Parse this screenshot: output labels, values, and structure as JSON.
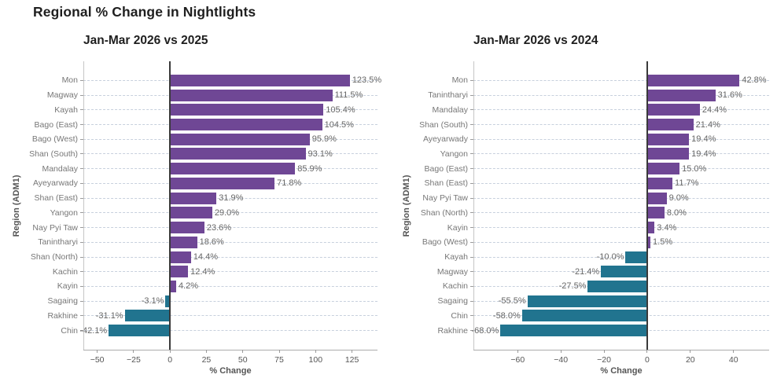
{
  "title": "Regional % Change in Nightlights",
  "colors": {
    "positive_bar": "#6f4795",
    "negative_bar": "#21748f",
    "gridline": "#c7d0dd",
    "zero_line": "#3a3a3a",
    "title_text": "#1f1f1f",
    "axis_text": "#555555",
    "category_text": "#777777",
    "value_text": "#666666"
  },
  "chart_data": [
    {
      "type": "bar",
      "orientation": "horizontal",
      "title": "Jan-Mar 2026 vs 2025",
      "xlabel": "% Change",
      "ylabel": "Region (ADM1)",
      "xlim": [
        -59.5,
        142.5
      ],
      "xticks": [
        -50,
        -25,
        0,
        25,
        50,
        75,
        100,
        125
      ],
      "grid": "dashed-horizontal-per-category",
      "legend": "none",
      "categories": [
        "Mon",
        "Magway",
        "Kayah",
        "Bago (East)",
        "Bago (West)",
        "Shan (South)",
        "Mandalay",
        "Ayeyarwady",
        "Shan (East)",
        "Yangon",
        "Nay Pyi Taw",
        "Tanintharyi",
        "Shan (North)",
        "Kachin",
        "Kayin",
        "Sagaing",
        "Rakhine",
        "Chin"
      ],
      "values": [
        123.5,
        111.5,
        105.4,
        104.5,
        95.9,
        93.1,
        85.9,
        71.8,
        31.9,
        29.0,
        23.6,
        18.6,
        14.4,
        12.4,
        4.2,
        -3.1,
        -31.1,
        -42.1
      ],
      "bar_labels": [
        "123.5%",
        "111.5%",
        "105.4%",
        "104.5%",
        "95.9%",
        "93.1%",
        "85.9%",
        "71.8%",
        "31.9%",
        "29.0%",
        "23.6%",
        "18.6%",
        "14.4%",
        "12.4%",
        "4.2%",
        "-3.1%",
        "-31.1%",
        "-42.1%"
      ]
    },
    {
      "type": "bar",
      "orientation": "horizontal",
      "title": "Jan-Mar 2026 vs 2024",
      "xlabel": "% Change",
      "ylabel": "Region (ADM1)",
      "xlim": [
        -80.5,
        56.5
      ],
      "xticks": [
        -60,
        -40,
        -20,
        0,
        20,
        40
      ],
      "grid": "dashed-horizontal-per-category",
      "legend": "none",
      "categories": [
        "Mon",
        "Tanintharyi",
        "Mandalay",
        "Shan (South)",
        "Ayeyarwady",
        "Yangon",
        "Bago (East)",
        "Shan (East)",
        "Nay Pyi Taw",
        "Shan (North)",
        "Kayin",
        "Bago (West)",
        "Kayah",
        "Magway",
        "Kachin",
        "Sagaing",
        "Chin",
        "Rakhine"
      ],
      "values": [
        42.8,
        31.6,
        24.4,
        21.4,
        19.4,
        19.4,
        15.0,
        11.7,
        9.0,
        8.0,
        3.4,
        1.5,
        -10.0,
        -21.4,
        -27.5,
        -55.5,
        -58.0,
        -68.0
      ],
      "bar_labels": [
        "42.8%",
        "31.6%",
        "24.4%",
        "21.4%",
        "19.4%",
        "19.4%",
        "15.0%",
        "11.7%",
        "9.0%",
        "8.0%",
        "3.4%",
        "1.5%",
        "-10.0%",
        "-21.4%",
        "-27.5%",
        "-55.5%",
        "-58.0%",
        "-68.0%"
      ]
    }
  ]
}
